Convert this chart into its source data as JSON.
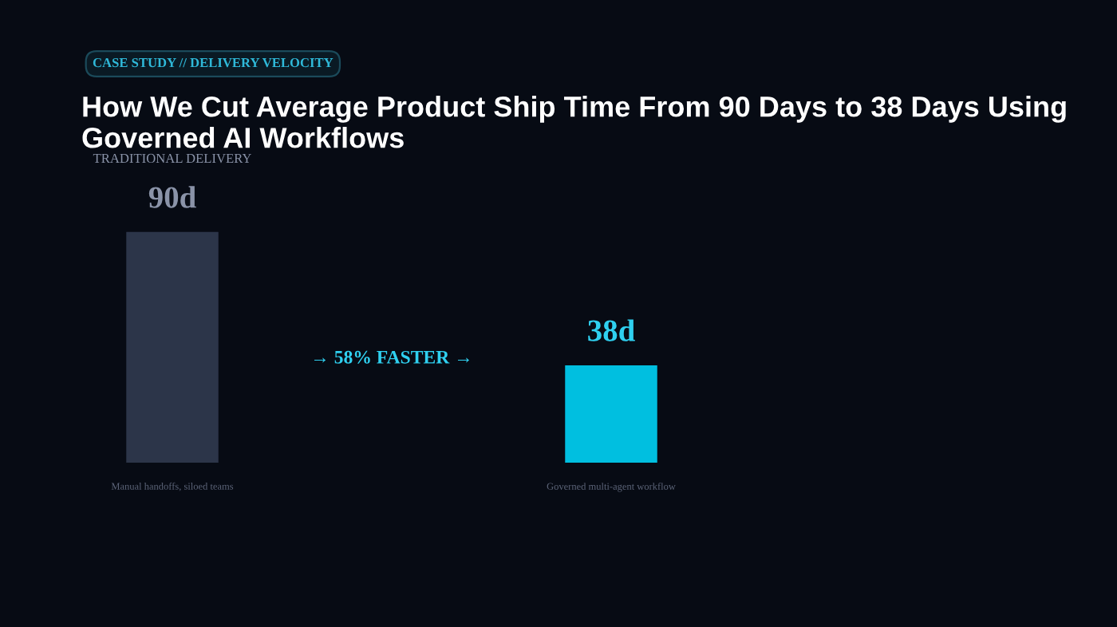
{
  "chart_data": {
    "type": "bar",
    "subtitle": "CASE STUDY // DELIVERY VELOCITY",
    "title": "How We Cut Average Product Ship Time From 90 Days to 38 Days Using Governed AI Workflows",
    "categories": [
      null,
      null
    ],
    "values": [
      90,
      38
    ],
    "value_labels": [
      "90d",
      "38d"
    ],
    "colors": [
      "#2c3549",
      "#00bfe0"
    ],
    "annotations": [
      "→ 58% FASTER →",
      "Manual handoffs, siloed teams",
      "Governed multi-agent workflow",
      "TRADITIONAL DELIVERY"
    ]
  }
}
